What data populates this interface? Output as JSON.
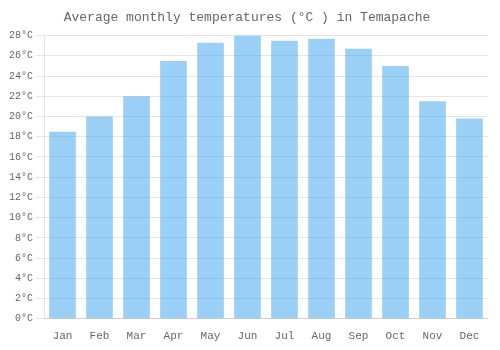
{
  "chart_data": {
    "type": "bar",
    "title": "Average monthly temperatures (°C ) in Temapache",
    "categories": [
      "Jan",
      "Feb",
      "Mar",
      "Apr",
      "May",
      "Jun",
      "Jul",
      "Aug",
      "Sep",
      "Oct",
      "Nov",
      "Dec"
    ],
    "values": [
      18.5,
      20.0,
      22.0,
      25.5,
      27.3,
      28.0,
      27.5,
      27.7,
      26.7,
      25.0,
      21.5,
      19.8
    ],
    "ylim": [
      0,
      28
    ],
    "yticks": [
      {
        "value": 0,
        "label": "0°C"
      },
      {
        "value": 2,
        "label": "2°C"
      },
      {
        "value": 4,
        "label": "4°C"
      },
      {
        "value": 6,
        "label": "6°C"
      },
      {
        "value": 8,
        "label": "8°C"
      },
      {
        "value": 10,
        "label": "10°C"
      },
      {
        "value": 12,
        "label": "12°C"
      },
      {
        "value": 14,
        "label": "14°C"
      },
      {
        "value": 16,
        "label": "16°C"
      },
      {
        "value": 18,
        "label": "18°C"
      },
      {
        "value": 20,
        "label": "20°C"
      },
      {
        "value": 22,
        "label": "22°C"
      },
      {
        "value": 24,
        "label": "24°C"
      },
      {
        "value": 26,
        "label": "26°C"
      },
      {
        "value": 28,
        "label": "28°C"
      }
    ],
    "grid": true
  }
}
